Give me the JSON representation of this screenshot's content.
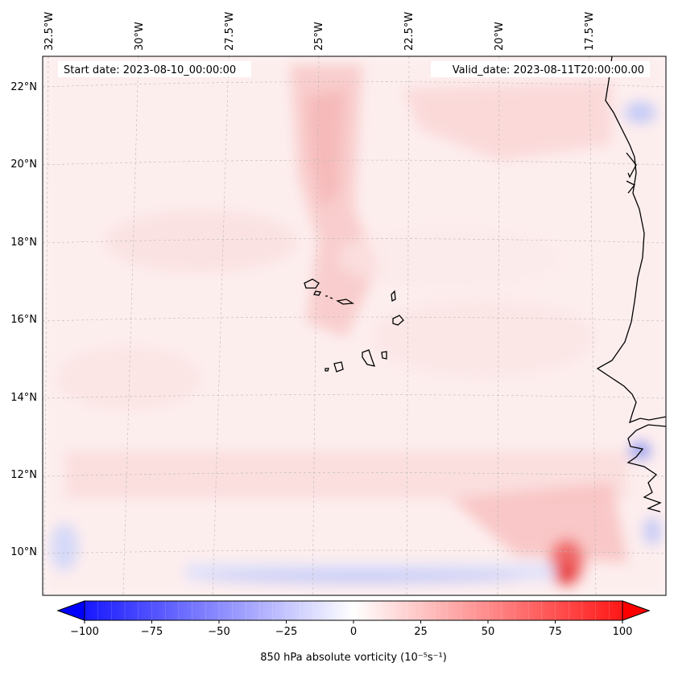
{
  "map": {
    "start_date": "Start date: 2023-08-10_00:00:00",
    "valid_date": "Valid_date: 2023-08-11T20:00:00.00",
    "lon_labels": [
      "32.5°W",
      "30°W",
      "27.5°W",
      "25°W",
      "22.5°W",
      "20°W",
      "17.5°W"
    ],
    "lat_labels": [
      "22°N",
      "20°N",
      "18°N",
      "16°N",
      "14°N",
      "12°N",
      "10°N"
    ],
    "features": [
      "Cape Verde islands",
      "West African coastline"
    ]
  },
  "colorbar": {
    "label": "850 hPa absolute vorticity (10⁻⁵s⁻¹)",
    "min": -100,
    "max": 100,
    "ticks": [
      "−100",
      "−75",
      "−50",
      "−25",
      "0",
      "25",
      "50",
      "75",
      "100"
    ],
    "low_color": "#0000ff",
    "mid_color": "#ffffff",
    "high_color": "#ff0000"
  }
}
